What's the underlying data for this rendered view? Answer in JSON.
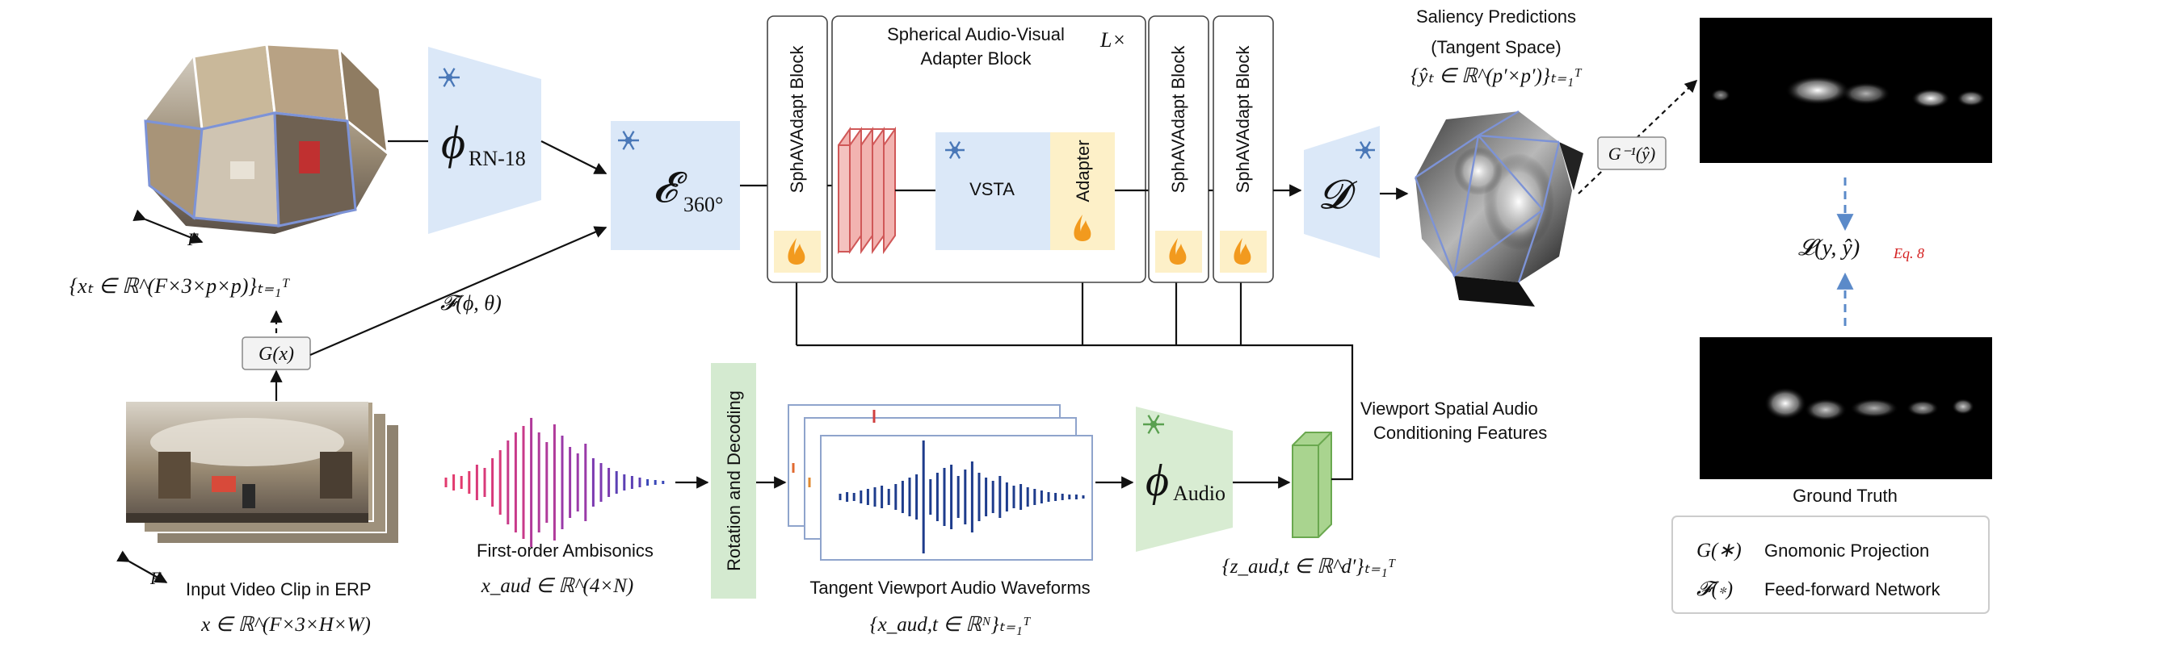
{
  "labels": {
    "phi_symbol": "ϕ",
    "rn18_sub": "RN-18",
    "encoder_symbol": "𝓔",
    "encoder_sub": "360°",
    "frames_F": "F",
    "x_set": "{xₜ ∈ ℝ^(F×3×p×p)}ₜ₌₁ᵀ",
    "g_box": "G(x)",
    "ff_label": "𝓕(ϕ, θ)",
    "input_clip_label": "Input Video Clip in ERP",
    "input_math": "x ∈ ℝ^(F×3×H×W)",
    "ambisonics_label": "First-order Ambisonics",
    "ambisonics_math": "x_aud ∈ ℝ^(4×N)",
    "rotation_label": "Rotation and Decoding",
    "tangent_wave_label": "Tangent Viewport Audio Waveforms",
    "tangent_wave_math": "{x_aud,t ∈ ℝᴺ}ₜ₌₁ᵀ",
    "phi_audio_sub": "Audio",
    "z_math": "{z_aud,t ∈ ℝ^d′}ₜ₌₁ᵀ",
    "viewport_feat_label_1": "Viewport Spatial Audio",
    "viewport_feat_label_2": "Conditioning Features",
    "sphav_block_1": "SphAVAdapt Block",
    "adapter_block_title_1": "Spherical Audio-Visual",
    "adapter_block_title_2": "Adapter Block",
    "repeat_label": "L×",
    "vsta": "VSTA",
    "adapter": "Adapter",
    "sphav_block_2": "SphAVAdapt Block",
    "sphav_block_3": "SphAVAdapt Block",
    "decoder_symbol": "𝓓",
    "saliency_title_1": "Saliency Predictions",
    "saliency_title_2": "(Tangent Space)",
    "saliency_math": "{ŷₜ ∈ ℝ^(p′×p′)}ₜ₌₁ᵀ",
    "ginv_box": "G⁻¹(ŷ)",
    "loss_math": "𝓛(y, ŷ)",
    "loss_ref": "Eq. 8",
    "ground_truth_label": "Ground Truth",
    "legend_g": "G(∗)",
    "legend_g_text": "Gnomonic Projection",
    "legend_f": "𝓕(∗)",
    "legend_f_text": "Feed-forward Network"
  },
  "icons": {
    "frozen": "snowflake-icon",
    "trainable": "flame-icon"
  },
  "colors": {
    "frozen_fill": "#dbe8f8",
    "snowflake": "#4a78b8",
    "adapter_fill": "#fdf0c8",
    "flame": "#f29a1e",
    "rotation_fill": "#d4ead0",
    "audio_enc_fill": "#d8ecd2",
    "feature_green": "#8cc870",
    "red_stack": "#f2b3b0",
    "loss_ref": "#d42020",
    "dashed_blue": "#5b8ac9"
  }
}
